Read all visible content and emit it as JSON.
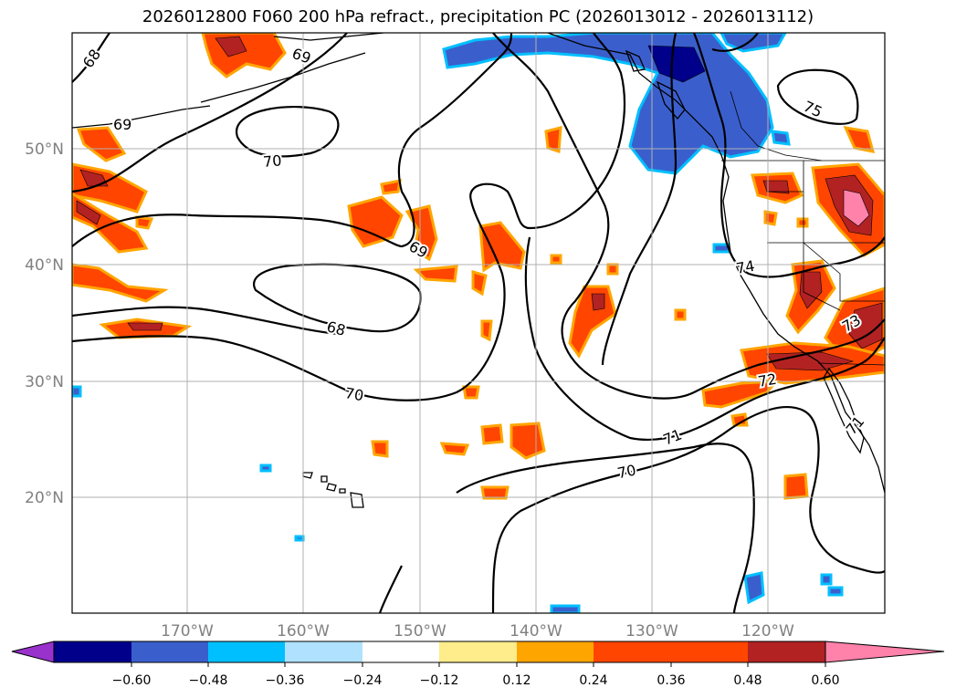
{
  "title": "2026012800 F060 200 hPa refract., precipitation PC (2026013012 - 2026013112)",
  "lat_labels": [
    "50°N",
    "40°N",
    "30°N",
    "20°N"
  ],
  "lon_labels": [
    "170°W",
    "160°W",
    "150°W",
    "140°W",
    "130°W",
    "120°W"
  ],
  "contour_labels": [
    "68",
    "69",
    "69",
    "70",
    "69",
    "68",
    "70",
    "70",
    "71",
    "74",
    "75",
    "73",
    "72",
    "71"
  ],
  "colorbar": {
    "colors": [
      "#9932cc",
      "#00008b",
      "#3a5fcd",
      "#00bfff",
      "#b0e2ff",
      "#ffffff",
      "#ffec8b",
      "#ffa500",
      "#ff4500",
      "#b22222",
      "#ff82ab"
    ],
    "tick_labels": [
      "−0.60",
      "−0.48",
      "−0.36",
      "−0.24",
      "−0.12",
      "0.12",
      "0.24",
      "0.36",
      "0.48",
      "0.60"
    ]
  }
}
